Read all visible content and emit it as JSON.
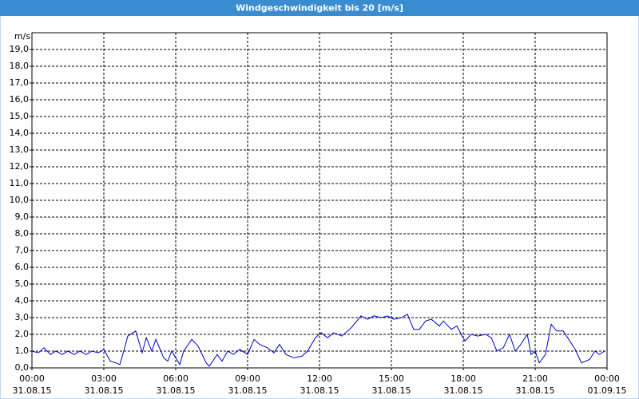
{
  "chart_data": {
    "type": "line",
    "title": "Windgeschwindigkeit bis 20 [m/s]",
    "y_label": "m/s",
    "x": [
      0.0,
      0.27,
      0.5,
      0.77,
      1.0,
      1.27,
      1.5,
      1.77,
      2.0,
      2.27,
      2.5,
      2.77,
      3.0,
      3.27,
      3.5,
      3.67,
      3.83,
      4.0,
      4.33,
      4.6,
      4.77,
      5.0,
      5.17,
      5.5,
      5.67,
      5.83,
      6.17,
      6.33,
      6.67,
      6.93,
      7.27,
      7.4,
      7.73,
      7.93,
      8.17,
      8.4,
      8.67,
      9.0,
      9.27,
      9.5,
      9.83,
      10.1,
      10.33,
      10.6,
      10.93,
      11.27,
      11.5,
      11.83,
      12.07,
      12.33,
      12.6,
      12.93,
      13.33,
      13.73,
      14.0,
      14.27,
      14.6,
      14.83,
      15.1,
      15.43,
      15.67,
      15.93,
      16.17,
      16.43,
      16.67,
      17.0,
      17.17,
      17.5,
      17.73,
      18.07,
      18.33,
      18.6,
      18.93,
      19.17,
      19.4,
      19.67,
      19.93,
      20.17,
      20.4,
      20.67,
      20.83,
      21.0,
      21.17,
      21.43,
      21.67,
      21.9,
      22.17,
      22.4,
      22.67,
      22.93,
      23.27,
      23.5,
      23.67,
      23.9
    ],
    "series": [
      {
        "color": "#0000cc",
        "values": [
          1.0,
          0.9,
          1.2,
          0.8,
          1.0,
          0.8,
          1.0,
          0.8,
          1.0,
          0.8,
          1.0,
          0.9,
          1.1,
          0.4,
          0.3,
          0.2,
          1.0,
          1.9,
          2.2,
          0.9,
          1.8,
          1.0,
          1.7,
          0.6,
          0.4,
          1.0,
          0.2,
          1.0,
          1.7,
          1.3,
          0.3,
          0.1,
          0.8,
          0.4,
          1.0,
          0.8,
          1.1,
          0.8,
          1.7,
          1.4,
          1.2,
          0.9,
          1.4,
          0.8,
          0.6,
          0.7,
          1.0,
          1.8,
          2.1,
          1.8,
          2.1,
          1.9,
          2.4,
          3.1,
          2.9,
          3.1,
          3.0,
          3.1,
          2.9,
          3.0,
          3.2,
          2.3,
          2.3,
          2.8,
          2.9,
          2.5,
          2.8,
          2.3,
          2.5,
          1.6,
          2.0,
          1.9,
          2.0,
          1.8,
          1.0,
          1.2,
          2.0,
          1.0,
          1.4,
          2.0,
          0.8,
          1.0,
          0.3,
          0.8,
          2.6,
          2.2,
          2.2,
          1.7,
          1.1,
          0.3,
          0.5,
          1.0,
          0.8,
          1.0
        ]
      }
    ],
    "xlim": [
      0,
      24
    ],
    "xticks": [
      {
        "value": 0,
        "label": "00:00"
      },
      {
        "value": 3,
        "label": "03:00"
      },
      {
        "value": 6,
        "label": "06:00"
      },
      {
        "value": 9,
        "label": "09:00"
      },
      {
        "value": 12,
        "label": "12:00"
      },
      {
        "value": 15,
        "label": "15:00"
      },
      {
        "value": 18,
        "label": "18:00"
      },
      {
        "value": 21,
        "label": "21:00"
      },
      {
        "value": 24,
        "label": "00:00"
      }
    ],
    "xtick_dates": [
      "31.08.15",
      "31.08.15",
      "31.08.15",
      "31.08.15",
      "31.08.15",
      "31.08.15",
      "31.08.15",
      "31.08.15",
      "01.09.15"
    ],
    "ylim": [
      0,
      20
    ],
    "yticks": [
      {
        "value": 0,
        "label": "0,0"
      },
      {
        "value": 1,
        "label": "1,0"
      },
      {
        "value": 2,
        "label": "2,0"
      },
      {
        "value": 3,
        "label": "3,0"
      },
      {
        "value": 4,
        "label": "4,0"
      },
      {
        "value": 5,
        "label": "5,0"
      },
      {
        "value": 6,
        "label": "6,0"
      },
      {
        "value": 7,
        "label": "7,0"
      },
      {
        "value": 8,
        "label": "8,0"
      },
      {
        "value": 9,
        "label": "9,0"
      },
      {
        "value": 10,
        "label": "10,0"
      },
      {
        "value": 11,
        "label": "11,0"
      },
      {
        "value": 12,
        "label": "12,0"
      },
      {
        "value": 13,
        "label": "13,0"
      },
      {
        "value": 14,
        "label": "14,0"
      },
      {
        "value": 15,
        "label": "15,0"
      },
      {
        "value": 16,
        "label": "16,0"
      },
      {
        "value": 17,
        "label": "17,0"
      },
      {
        "value": 18,
        "label": "18,0"
      },
      {
        "value": 19,
        "label": "19,0"
      }
    ],
    "grid": true
  }
}
